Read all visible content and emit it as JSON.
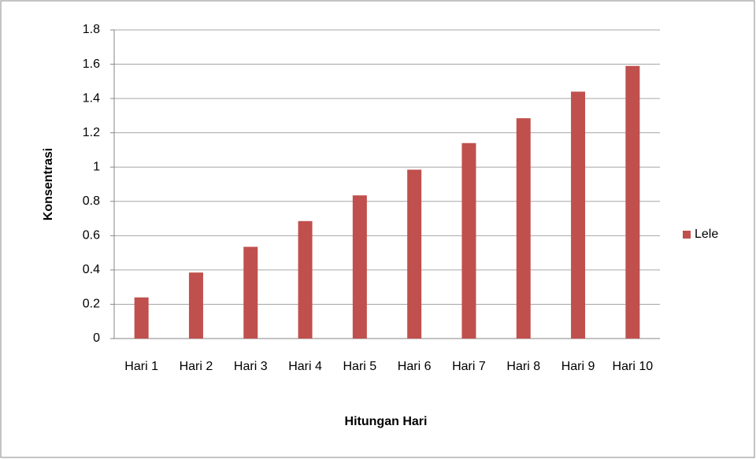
{
  "chart_data": {
    "type": "bar",
    "x_label": "Hitungan Hari",
    "y_label": "Konsentrasi",
    "categories": [
      "Hari 1",
      "Hari 2",
      "Hari 3",
      "Hari 4",
      "Hari 5",
      "Hari 6",
      "Hari 7",
      "Hari 8",
      "Hari 9",
      "Hari 10"
    ],
    "series": [
      {
        "name": "Lele",
        "color": "#c0504d",
        "values": [
          0.24,
          0.385,
          0.535,
          0.685,
          0.835,
          0.985,
          1.14,
          1.285,
          1.44,
          1.59
        ]
      }
    ],
    "ylim": [
      0,
      1.8
    ],
    "yticks": [
      0,
      0.2,
      0.4,
      0.6,
      0.8,
      1,
      1.2,
      1.4,
      1.6,
      1.8
    ],
    "grid": true,
    "legend": "right"
  }
}
